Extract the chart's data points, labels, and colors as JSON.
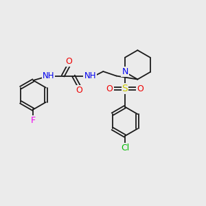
{
  "bg_color": "#ebebeb",
  "bond_color": "#1a1a1a",
  "atom_colors": {
    "N": "#0000ee",
    "O": "#ee0000",
    "F": "#ee00ee",
    "Cl": "#00bb00",
    "S": "#cccc00",
    "C": "#1a1a1a",
    "H": "#606060"
  },
  "font_size": 8.5,
  "lw": 1.3
}
